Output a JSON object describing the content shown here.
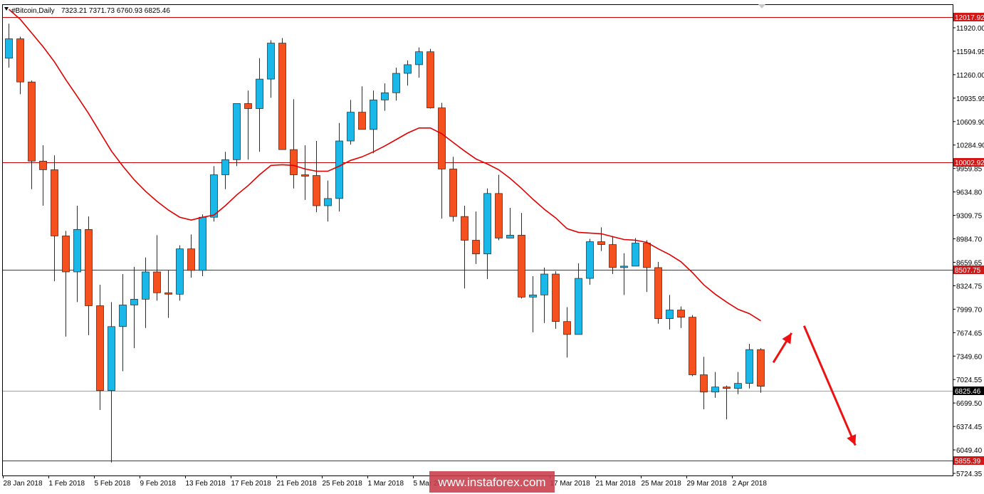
{
  "header": {
    "symbol": "#Bitcoin,Daily",
    "ohlc": "7323.21 7371.73 6760.93 6825.46"
  },
  "watermark": "www.instaforex.com",
  "colors": {
    "bull": "#19b8e8",
    "bear": "#f4511e",
    "ma": "#e00000",
    "level": "#cc0000",
    "current": "#a0a0a0",
    "arrow": "#ee1111",
    "frame": "#000000",
    "tag_red": "#d31616",
    "tag_black": "#000000",
    "watermark_bg": "#ca3c4a"
  },
  "chart_data": {
    "type": "candlestick",
    "ylim": [
      5650,
      12200
    ],
    "y_ticks": [
      "11920.00",
      "11594.95",
      "11260.00",
      "10935.95",
      "10609.90",
      "10284.90",
      "9959.85",
      "9634.80",
      "9309.75",
      "8984.70",
      "8659.65",
      "8324.75",
      "7999.70",
      "7674.65",
      "7349.60",
      "7024.55",
      "6699.50",
      "6374.45",
      "6049.40",
      "5724.35"
    ],
    "x_labels": [
      {
        "label": "28 Jan 2018",
        "index": 0
      },
      {
        "label": "1 Feb 2018",
        "index": 4
      },
      {
        "label": "5 Feb 2018",
        "index": 8
      },
      {
        "label": "9 Feb 2018",
        "index": 12
      },
      {
        "label": "13 Feb 2018",
        "index": 16
      },
      {
        "label": "17 Feb 2018",
        "index": 20
      },
      {
        "label": "21 Feb 2018",
        "index": 24
      },
      {
        "label": "25 Feb 2018",
        "index": 28
      },
      {
        "label": "1 Mar 2018",
        "index": 32
      },
      {
        "label": "5 Mar 2018",
        "index": 36
      },
      {
        "label": "17 Mar 2018",
        "index": 48
      },
      {
        "label": "21 Mar 2018",
        "index": 52
      },
      {
        "label": "25 Mar 2018",
        "index": 56
      },
      {
        "label": "29 Mar 2018",
        "index": 60
      },
      {
        "label": "2 Apr 2018",
        "index": 64
      }
    ],
    "candles": [
      {
        "o": 11450,
        "h": 11930,
        "l": 11320,
        "c": 11720
      },
      {
        "o": 11720,
        "h": 11750,
        "l": 10950,
        "c": 11120
      },
      {
        "o": 11120,
        "h": 11140,
        "l": 9630,
        "c": 10020
      },
      {
        "o": 10020,
        "h": 10240,
        "l": 9400,
        "c": 9900
      },
      {
        "o": 9900,
        "h": 10100,
        "l": 8350,
        "c": 8980
      },
      {
        "o": 8980,
        "h": 9050,
        "l": 7580,
        "c": 8480
      },
      {
        "o": 8480,
        "h": 9400,
        "l": 8060,
        "c": 9070
      },
      {
        "o": 9070,
        "h": 9250,
        "l": 7600,
        "c": 8010
      },
      {
        "o": 8010,
        "h": 8300,
        "l": 6560,
        "c": 6830
      },
      {
        "o": 6830,
        "h": 8060,
        "l": 5830,
        "c": 7720
      },
      {
        "o": 7720,
        "h": 8450,
        "l": 7100,
        "c": 8020
      },
      {
        "o": 8020,
        "h": 8550,
        "l": 7420,
        "c": 8100
      },
      {
        "o": 8100,
        "h": 8680,
        "l": 7700,
        "c": 8480
      },
      {
        "o": 8480,
        "h": 8990,
        "l": 8080,
        "c": 8190
      },
      {
        "o": 8190,
        "h": 8500,
        "l": 7840,
        "c": 8170
      },
      {
        "o": 8170,
        "h": 8850,
        "l": 8080,
        "c": 8800
      },
      {
        "o": 8800,
        "h": 9000,
        "l": 8400,
        "c": 8500
      },
      {
        "o": 8500,
        "h": 9280,
        "l": 8420,
        "c": 9240
      },
      {
        "o": 9240,
        "h": 9950,
        "l": 9180,
        "c": 9830
      },
      {
        "o": 9830,
        "h": 10150,
        "l": 9630,
        "c": 10040
      },
      {
        "o": 10040,
        "h": 10800,
        "l": 9950,
        "c": 10820
      },
      {
        "o": 10820,
        "h": 11000,
        "l": 10040,
        "c": 10750
      },
      {
        "o": 10750,
        "h": 11450,
        "l": 10150,
        "c": 11160
      },
      {
        "o": 11160,
        "h": 11700,
        "l": 10900,
        "c": 11660
      },
      {
        "o": 11660,
        "h": 11730,
        "l": 10200,
        "c": 10180
      },
      {
        "o": 10180,
        "h": 10880,
        "l": 9640,
        "c": 9830
      },
      {
        "o": 9830,
        "h": 10240,
        "l": 9480,
        "c": 9820
      },
      {
        "o": 9820,
        "h": 10300,
        "l": 9310,
        "c": 9400
      },
      {
        "o": 9400,
        "h": 9750,
        "l": 9180,
        "c": 9500
      },
      {
        "o": 9500,
        "h": 10550,
        "l": 9320,
        "c": 10300
      },
      {
        "o": 10300,
        "h": 10870,
        "l": 10250,
        "c": 10700
      },
      {
        "o": 10700,
        "h": 11060,
        "l": 10470,
        "c": 10460
      },
      {
        "o": 10460,
        "h": 11000,
        "l": 10130,
        "c": 10870
      },
      {
        "o": 10870,
        "h": 11100,
        "l": 10720,
        "c": 10970
      },
      {
        "o": 10970,
        "h": 11320,
        "l": 10860,
        "c": 11240
      },
      {
        "o": 11240,
        "h": 11420,
        "l": 11070,
        "c": 11360
      },
      {
        "o": 11360,
        "h": 11600,
        "l": 11180,
        "c": 11540
      },
      {
        "o": 11540,
        "h": 11580,
        "l": 10750,
        "c": 10760
      },
      {
        "o": 10760,
        "h": 10830,
        "l": 9220,
        "c": 9910
      },
      {
        "o": 9910,
        "h": 10080,
        "l": 9180,
        "c": 9250
      },
      {
        "o": 9250,
        "h": 9400,
        "l": 8250,
        "c": 8920
      },
      {
        "o": 8920,
        "h": 9320,
        "l": 8590,
        "c": 8730
      },
      {
        "o": 8730,
        "h": 9640,
        "l": 8380,
        "c": 9570
      },
      {
        "o": 9570,
        "h": 9830,
        "l": 8920,
        "c": 8950
      },
      {
        "o": 8950,
        "h": 9370,
        "l": 8950,
        "c": 8990
      },
      {
        "o": 8990,
        "h": 9300,
        "l": 8110,
        "c": 8130
      },
      {
        "o": 8130,
        "h": 8420,
        "l": 7640,
        "c": 8160
      },
      {
        "o": 8160,
        "h": 8540,
        "l": 7770,
        "c": 8450
      },
      {
        "o": 8450,
        "h": 8490,
        "l": 7690,
        "c": 7790
      },
      {
        "o": 7790,
        "h": 7990,
        "l": 7290,
        "c": 7610
      },
      {
        "o": 7610,
        "h": 8600,
        "l": 7610,
        "c": 8390
      },
      {
        "o": 8390,
        "h": 8940,
        "l": 8300,
        "c": 8900
      },
      {
        "o": 8900,
        "h": 9100,
        "l": 8770,
        "c": 8860
      },
      {
        "o": 8860,
        "h": 8980,
        "l": 8450,
        "c": 8540
      },
      {
        "o": 8540,
        "h": 8740,
        "l": 8160,
        "c": 8560
      },
      {
        "o": 8560,
        "h": 8950,
        "l": 8560,
        "c": 8880
      },
      {
        "o": 8880,
        "h": 8920,
        "l": 8200,
        "c": 8540
      },
      {
        "o": 8540,
        "h": 8620,
        "l": 7760,
        "c": 7830
      },
      {
        "o": 7830,
        "h": 8160,
        "l": 7680,
        "c": 7950
      },
      {
        "o": 7950,
        "h": 8000,
        "l": 7700,
        "c": 7850
      },
      {
        "o": 7850,
        "h": 7880,
        "l": 7030,
        "c": 7050
      },
      {
        "o": 7050,
        "h": 7300,
        "l": 6570,
        "c": 6810
      },
      {
        "o": 6810,
        "h": 7090,
        "l": 6730,
        "c": 6880
      },
      {
        "o": 6880,
        "h": 6900,
        "l": 6430,
        "c": 6860
      },
      {
        "o": 6860,
        "h": 7090,
        "l": 6780,
        "c": 6930
      },
      {
        "o": 6930,
        "h": 7480,
        "l": 6860,
        "c": 7400
      },
      {
        "o": 7400,
        "h": 7420,
        "l": 6800,
        "c": 6890
      }
    ],
    "ma_series": [
      {
        "i": 0,
        "v": 12130
      },
      {
        "i": 1,
        "v": 11990
      },
      {
        "i": 2,
        "v": 11800
      },
      {
        "i": 3,
        "v": 11610
      },
      {
        "i": 4,
        "v": 11400
      },
      {
        "i": 5,
        "v": 11150
      },
      {
        "i": 6,
        "v": 10920
      },
      {
        "i": 7,
        "v": 10680
      },
      {
        "i": 8,
        "v": 10420
      },
      {
        "i": 9,
        "v": 10160
      },
      {
        "i": 10,
        "v": 9950
      },
      {
        "i": 11,
        "v": 9760
      },
      {
        "i": 12,
        "v": 9600
      },
      {
        "i": 13,
        "v": 9460
      },
      {
        "i": 14,
        "v": 9340
      },
      {
        "i": 15,
        "v": 9240
      },
      {
        "i": 16,
        "v": 9200
      },
      {
        "i": 17,
        "v": 9240
      },
      {
        "i": 18,
        "v": 9270
      },
      {
        "i": 19,
        "v": 9400
      },
      {
        "i": 20,
        "v": 9550
      },
      {
        "i": 21,
        "v": 9680
      },
      {
        "i": 22,
        "v": 9830
      },
      {
        "i": 23,
        "v": 9960
      },
      {
        "i": 24,
        "v": 9970
      },
      {
        "i": 25,
        "v": 9960
      },
      {
        "i": 26,
        "v": 9910
      },
      {
        "i": 27,
        "v": 9880
      },
      {
        "i": 28,
        "v": 9880
      },
      {
        "i": 29,
        "v": 9950
      },
      {
        "i": 30,
        "v": 10030
      },
      {
        "i": 31,
        "v": 10080
      },
      {
        "i": 32,
        "v": 10150
      },
      {
        "i": 33,
        "v": 10230
      },
      {
        "i": 34,
        "v": 10320
      },
      {
        "i": 35,
        "v": 10410
      },
      {
        "i": 36,
        "v": 10480
      },
      {
        "i": 37,
        "v": 10480
      },
      {
        "i": 38,
        "v": 10400
      },
      {
        "i": 39,
        "v": 10280
      },
      {
        "i": 40,
        "v": 10160
      },
      {
        "i": 41,
        "v": 10050
      },
      {
        "i": 42,
        "v": 9980
      },
      {
        "i": 43,
        "v": 9900
      },
      {
        "i": 44,
        "v": 9780
      },
      {
        "i": 45,
        "v": 9640
      },
      {
        "i": 46,
        "v": 9490
      },
      {
        "i": 47,
        "v": 9350
      },
      {
        "i": 48,
        "v": 9230
      },
      {
        "i": 49,
        "v": 9080
      },
      {
        "i": 50,
        "v": 9030
      },
      {
        "i": 51,
        "v": 9020
      },
      {
        "i": 52,
        "v": 9010
      },
      {
        "i": 53,
        "v": 8970
      },
      {
        "i": 54,
        "v": 8930
      },
      {
        "i": 55,
        "v": 8920
      },
      {
        "i": 56,
        "v": 8890
      },
      {
        "i": 57,
        "v": 8800
      },
      {
        "i": 58,
        "v": 8720
      },
      {
        "i": 59,
        "v": 8620
      },
      {
        "i": 60,
        "v": 8470
      },
      {
        "i": 61,
        "v": 8300
      },
      {
        "i": 62,
        "v": 8170
      },
      {
        "i": 63,
        "v": 8060
      },
      {
        "i": 64,
        "v": 7960
      },
      {
        "i": 65,
        "v": 7900
      },
      {
        "i": 66,
        "v": 7800
      }
    ],
    "levels": [
      {
        "value": 12017.92,
        "label": "12017.92"
      },
      {
        "value": 10002.92,
        "label": "10002.92"
      },
      {
        "value": 8507.75,
        "label": "8507.75"
      },
      {
        "value": 5855.39,
        "label": "5855.39"
      }
    ],
    "current_price": {
      "value": 6825.46,
      "label": "6825.46"
    },
    "annotations": [
      {
        "type": "arrow",
        "direction": "up",
        "from_index": 67.1,
        "from_value": 7220,
        "to_index": 68.7,
        "to_value": 7630
      },
      {
        "type": "arrow",
        "direction": "down",
        "from_index": 69.8,
        "from_value": 7730,
        "to_index": 74.3,
        "to_value": 6070
      }
    ],
    "grid": false,
    "legend": "none"
  }
}
